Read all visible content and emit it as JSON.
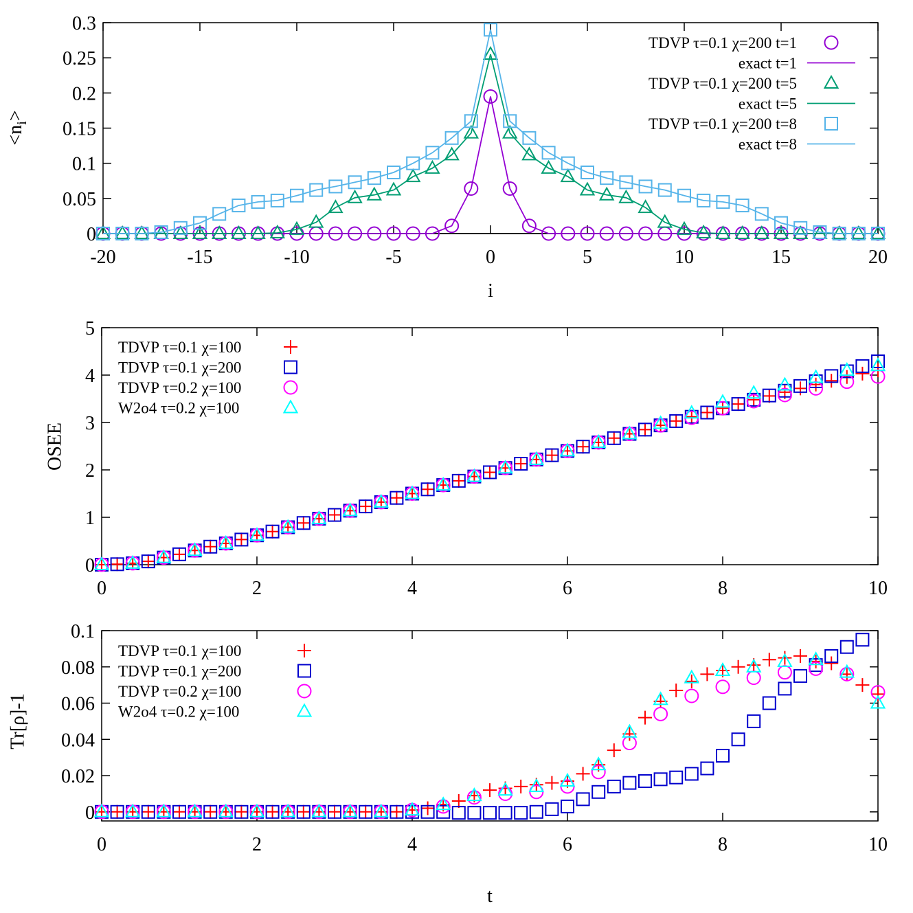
{
  "chart_data": [
    {
      "type": "line",
      "xlabel": "i",
      "ylabel": "<n_i>",
      "xlim": [
        -20,
        20
      ],
      "ylim": [
        0,
        0.3
      ],
      "xticks": [
        "-20",
        "-15",
        "-10",
        "-5",
        "0",
        "5",
        "10",
        "15",
        "20"
      ],
      "yticks": [
        "0",
        "0.05",
        "0.1",
        "0.15",
        "0.2",
        "0.25",
        "0.3"
      ],
      "legend_position": "top-right",
      "x": [
        -20,
        -19,
        -18,
        -17,
        -16,
        -15,
        -14,
        -13,
        -12,
        -11,
        -10,
        -9,
        -8,
        -7,
        -6,
        -5,
        -4,
        -3,
        -2,
        -1,
        0,
        1,
        2,
        3,
        4,
        5,
        6,
        7,
        8,
        9,
        10,
        11,
        12,
        13,
        14,
        15,
        16,
        17,
        18,
        19,
        20
      ],
      "series": [
        {
          "name": "TDVP τ=0.1 χ=200 t=1",
          "marker": "circle",
          "color": "#9400d3",
          "values": [
            0,
            0,
            0,
            0,
            0,
            0,
            0,
            0,
            0,
            0,
            0,
            0,
            0,
            0,
            0,
            0,
            0,
            0,
            0.011,
            0.064,
            0.195,
            0.064,
            0.011,
            0,
            0,
            0,
            0,
            0,
            0,
            0,
            0,
            0,
            0,
            0,
            0,
            0,
            0,
            0,
            0,
            0,
            0
          ]
        },
        {
          "name": "exact t=1",
          "marker": "line",
          "color": "#9400d3",
          "values": [
            0,
            0,
            0,
            0,
            0,
            0,
            0,
            0,
            0,
            0,
            0,
            0,
            0,
            0,
            0,
            0,
            0,
            0,
            0.011,
            0.064,
            0.195,
            0.064,
            0.011,
            0,
            0,
            0,
            0,
            0,
            0,
            0,
            0,
            0,
            0,
            0,
            0,
            0,
            0,
            0,
            0,
            0,
            0
          ]
        },
        {
          "name": "TDVP τ=0.1 χ=200 t=5",
          "marker": "triangle",
          "color": "#009e73",
          "values": [
            0,
            0,
            0,
            0,
            0,
            0,
            0,
            0,
            0,
            0.001,
            0.006,
            0.016,
            0.037,
            0.051,
            0.055,
            0.062,
            0.081,
            0.093,
            0.112,
            0.143,
            0.255,
            0.143,
            0.112,
            0.093,
            0.081,
            0.062,
            0.055,
            0.051,
            0.037,
            0.016,
            0.006,
            0.001,
            0,
            0,
            0,
            0,
            0,
            0,
            0,
            0,
            0
          ]
        },
        {
          "name": "exact t=5",
          "marker": "line",
          "color": "#009e73",
          "values": [
            0,
            0,
            0,
            0,
            0,
            0,
            0,
            0,
            0,
            0.001,
            0.006,
            0.016,
            0.037,
            0.051,
            0.055,
            0.062,
            0.081,
            0.093,
            0.112,
            0.143,
            0.255,
            0.143,
            0.112,
            0.093,
            0.081,
            0.062,
            0.055,
            0.051,
            0.037,
            0.016,
            0.006,
            0.001,
            0,
            0,
            0,
            0,
            0,
            0,
            0,
            0,
            0
          ]
        },
        {
          "name": "TDVP τ=0.1 χ=200 t=8",
          "marker": "square",
          "color": "#56b4e9",
          "values": [
            0,
            0,
            0,
            0.002,
            0.008,
            0.015,
            0.028,
            0.04,
            0.045,
            0.047,
            0.054,
            0.062,
            0.067,
            0.073,
            0.079,
            0.087,
            0.1,
            0.115,
            0.136,
            0.16,
            0.29,
            0.16,
            0.136,
            0.115,
            0.1,
            0.087,
            0.079,
            0.073,
            0.067,
            0.062,
            0.054,
            0.047,
            0.045,
            0.04,
            0.028,
            0.015,
            0.008,
            0.002,
            0,
            0,
            0
          ]
        },
        {
          "name": "exact t=8",
          "marker": "line",
          "color": "#56b4e9",
          "values": [
            0,
            0,
            0,
            0.002,
            0.008,
            0.015,
            0.028,
            0.04,
            0.045,
            0.047,
            0.054,
            0.062,
            0.067,
            0.073,
            0.079,
            0.087,
            0.1,
            0.115,
            0.136,
            0.16,
            0.29,
            0.16,
            0.136,
            0.115,
            0.1,
            0.087,
            0.079,
            0.073,
            0.067,
            0.062,
            0.054,
            0.047,
            0.045,
            0.04,
            0.028,
            0.015,
            0.008,
            0.002,
            0,
            0,
            0
          ]
        }
      ]
    },
    {
      "type": "scatter",
      "xlabel": "",
      "ylabel": "OSEE",
      "xlim": [
        0,
        10
      ],
      "ylim": [
        0,
        5
      ],
      "xticks": [
        "0",
        "2",
        "4",
        "6",
        "8",
        "10"
      ],
      "yticks": [
        "0",
        "1",
        "2",
        "3",
        "4",
        "5"
      ],
      "legend_position": "top-left",
      "series": [
        {
          "name": "TDVP τ=0.1 χ=100",
          "marker": "plus",
          "color": "#ff0000",
          "x": [
            0,
            0.2,
            0.4,
            0.6,
            0.8,
            1,
            1.2,
            1.4,
            1.6,
            1.8,
            2,
            2.2,
            2.4,
            2.6,
            2.8,
            3,
            3.2,
            3.4,
            3.6,
            3.8,
            4,
            4.2,
            4.4,
            4.6,
            4.8,
            5,
            5.2,
            5.4,
            5.6,
            5.8,
            6,
            6.2,
            6.4,
            6.6,
            6.8,
            7,
            7.2,
            7.4,
            7.6,
            7.8,
            8,
            8.2,
            8.4,
            8.6,
            8.8,
            9,
            9.2,
            9.4,
            9.6,
            9.8,
            10
          ],
          "y": [
            0,
            0.01,
            0.03,
            0.07,
            0.15,
            0.22,
            0.3,
            0.38,
            0.45,
            0.53,
            0.62,
            0.7,
            0.79,
            0.88,
            0.97,
            1.05,
            1.14,
            1.23,
            1.32,
            1.41,
            1.5,
            1.59,
            1.68,
            1.77,
            1.86,
            1.95,
            2.04,
            2.13,
            2.22,
            2.31,
            2.4,
            2.49,
            2.58,
            2.67,
            2.76,
            2.85,
            2.94,
            3.03,
            3.12,
            3.21,
            3.3,
            3.39,
            3.48,
            3.56,
            3.64,
            3.72,
            3.8,
            3.88,
            3.96,
            4.03,
            4.1
          ]
        },
        {
          "name": "TDVP τ=0.1 χ=200",
          "marker": "square",
          "color": "#0000cd",
          "x": [
            0,
            0.2,
            0.4,
            0.6,
            0.8,
            1,
            1.2,
            1.4,
            1.6,
            1.8,
            2,
            2.2,
            2.4,
            2.6,
            2.8,
            3,
            3.2,
            3.4,
            3.6,
            3.8,
            4,
            4.2,
            4.4,
            4.6,
            4.8,
            5,
            5.2,
            5.4,
            5.6,
            5.8,
            6,
            6.2,
            6.4,
            6.6,
            6.8,
            7,
            7.2,
            7.4,
            7.6,
            7.8,
            8,
            8.2,
            8.4,
            8.6,
            8.8,
            9,
            9.2,
            9.4,
            9.6,
            9.8,
            10
          ],
          "y": [
            0,
            0.01,
            0.03,
            0.07,
            0.15,
            0.22,
            0.3,
            0.38,
            0.45,
            0.53,
            0.62,
            0.7,
            0.79,
            0.88,
            0.97,
            1.05,
            1.14,
            1.23,
            1.32,
            1.41,
            1.5,
            1.59,
            1.68,
            1.77,
            1.86,
            1.95,
            2.04,
            2.13,
            2.22,
            2.31,
            2.4,
            2.49,
            2.58,
            2.67,
            2.76,
            2.85,
            2.94,
            3.03,
            3.12,
            3.21,
            3.3,
            3.39,
            3.48,
            3.57,
            3.67,
            3.77,
            3.87,
            3.98,
            4.08,
            4.19,
            4.29
          ]
        },
        {
          "name": "TDVP τ=0.2 χ=100",
          "marker": "circle",
          "color": "#ff00ff",
          "x": [
            0,
            0.4,
            0.8,
            1.2,
            1.6,
            2,
            2.4,
            2.8,
            3.2,
            3.6,
            4,
            4.4,
            4.8,
            5.2,
            5.6,
            6,
            6.4,
            6.8,
            7.2,
            7.6,
            8,
            8.4,
            8.8,
            9.2,
            9.6,
            10
          ],
          "y": [
            0,
            0.03,
            0.15,
            0.3,
            0.45,
            0.62,
            0.79,
            0.97,
            1.14,
            1.32,
            1.5,
            1.68,
            1.86,
            2.04,
            2.22,
            2.4,
            2.58,
            2.76,
            2.94,
            3.1,
            3.3,
            3.45,
            3.58,
            3.72,
            3.86,
            3.97
          ]
        },
        {
          "name": "W2o4 τ=0.2 χ=100",
          "marker": "triangle",
          "color": "#00ffff",
          "x": [
            0,
            0.4,
            0.8,
            1.2,
            1.6,
            2,
            2.4,
            2.8,
            3.2,
            3.6,
            4,
            4.4,
            4.8,
            5.2,
            5.6,
            6,
            6.4,
            6.8,
            7.2,
            7.6,
            8,
            8.4,
            8.8,
            9.2,
            9.6,
            10
          ],
          "y": [
            0,
            0.03,
            0.15,
            0.3,
            0.45,
            0.62,
            0.79,
            0.97,
            1.14,
            1.32,
            1.5,
            1.68,
            1.86,
            2.04,
            2.22,
            2.4,
            2.58,
            2.76,
            2.98,
            3.2,
            3.43,
            3.62,
            3.79,
            3.95,
            4.1,
            4.2
          ]
        }
      ]
    },
    {
      "type": "scatter",
      "xlabel": "t",
      "ylabel": "Tr[ρ]-1",
      "xlim": [
        0,
        10
      ],
      "ylim": [
        -0.005,
        0.1
      ],
      "xticks": [
        "0",
        "2",
        "4",
        "6",
        "8",
        "10"
      ],
      "yticks": [
        "0",
        "0.02",
        "0.04",
        "0.06",
        "0.08",
        "0.1"
      ],
      "legend_position": "top-left",
      "series": [
        {
          "name": "TDVP τ=0.1 χ=100",
          "marker": "plus",
          "color": "#ff0000",
          "x": [
            0,
            0.2,
            0.4,
            0.6,
            0.8,
            1,
            1.2,
            1.4,
            1.6,
            1.8,
            2,
            2.2,
            2.4,
            2.6,
            2.8,
            3,
            3.2,
            3.4,
            3.6,
            3.8,
            4,
            4.2,
            4.4,
            4.6,
            4.8,
            5,
            5.2,
            5.4,
            5.6,
            5.8,
            6,
            6.2,
            6.4,
            6.6,
            6.8,
            7,
            7.2,
            7.4,
            7.6,
            7.8,
            8,
            8.2,
            8.4,
            8.6,
            8.8,
            9,
            9.2,
            9.4,
            9.6,
            9.8,
            10
          ],
          "y": [
            0,
            0,
            0,
            0,
            0,
            0,
            0,
            0,
            0,
            0,
            0,
            0,
            0,
            0,
            0,
            0,
            0,
            0,
            0,
            0,
            0.001,
            0.002,
            0.004,
            0.006,
            0.009,
            0.012,
            0.013,
            0.014,
            0.015,
            0.016,
            0.017,
            0.021,
            0.026,
            0.034,
            0.043,
            0.052,
            0.061,
            0.067,
            0.072,
            0.076,
            0.078,
            0.08,
            0.081,
            0.084,
            0.085,
            0.086,
            0.083,
            0.082,
            0.076,
            0.07,
            0.065
          ]
        },
        {
          "name": "TDVP τ=0.1 χ=200",
          "marker": "square",
          "color": "#0000cd",
          "x": [
            0,
            0.2,
            0.4,
            0.6,
            0.8,
            1,
            1.2,
            1.4,
            1.6,
            1.8,
            2,
            2.2,
            2.4,
            2.6,
            2.8,
            3,
            3.2,
            3.4,
            3.6,
            3.8,
            4,
            4.2,
            4.4,
            4.6,
            4.8,
            5,
            5.2,
            5.4,
            5.6,
            5.8,
            6,
            6.2,
            6.4,
            6.6,
            6.8,
            7,
            7.2,
            7.4,
            7.6,
            7.8,
            8,
            8.2,
            8.4,
            8.6,
            8.8,
            9,
            9.2,
            9.4,
            9.6,
            9.8
          ],
          "y": [
            0,
            0,
            0,
            0,
            0,
            0,
            0,
            0,
            0,
            0,
            0,
            0,
            0,
            0,
            0,
            0,
            0,
            0,
            0,
            0,
            0,
            0,
            0,
            -0.0005,
            -0.0005,
            -0.0005,
            -0.0005,
            -0.0005,
            0,
            0.0015,
            0.003,
            0.007,
            0.011,
            0.014,
            0.016,
            0.017,
            0.018,
            0.019,
            0.021,
            0.024,
            0.031,
            0.04,
            0.05,
            0.06,
            0.068,
            0.075,
            0.081,
            0.086,
            0.091,
            0.095
          ]
        },
        {
          "name": "TDVP τ=0.2 χ=100",
          "marker": "circle",
          "color": "#ff00ff",
          "x": [
            0,
            0.4,
            0.8,
            1.2,
            1.6,
            2,
            2.4,
            2.8,
            3.2,
            3.6,
            4,
            4.4,
            4.8,
            5.2,
            5.6,
            6,
            6.4,
            6.8,
            7.2,
            7.6,
            8,
            8.4,
            8.8,
            9.2,
            9.6,
            10
          ],
          "y": [
            0,
            0,
            0,
            0,
            0,
            0,
            0,
            0,
            0,
            0,
            0.001,
            0.003,
            0.008,
            0.01,
            0.011,
            0.014,
            0.022,
            0.038,
            0.054,
            0.064,
            0.069,
            0.074,
            0.077,
            0.079,
            0.076,
            0.066
          ]
        },
        {
          "name": "W2o4 τ=0.2 χ=100",
          "marker": "triangle",
          "color": "#00ffff",
          "x": [
            0,
            0.4,
            0.8,
            1.2,
            1.6,
            2,
            2.4,
            2.8,
            3.2,
            3.6,
            4,
            4.4,
            4.8,
            5.2,
            5.6,
            6,
            6.4,
            6.8,
            7.2,
            7.6,
            8,
            8.4,
            8.8,
            9.2,
            9.6,
            10
          ],
          "y": [
            0,
            0,
            0,
            0,
            0,
            0,
            0,
            0,
            0,
            0,
            0.001,
            0.004,
            0.009,
            0.012,
            0.014,
            0.017,
            0.026,
            0.044,
            0.062,
            0.074,
            0.078,
            0.08,
            0.083,
            0.084,
            0.077,
            0.06
          ]
        }
      ]
    }
  ]
}
